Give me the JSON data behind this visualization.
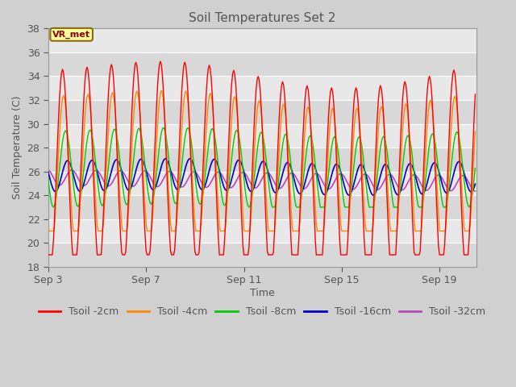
{
  "title": "Soil Temperatures Set 2",
  "xlabel": "Time",
  "ylabel": "Soil Temperature (C)",
  "ylim": [
    18,
    38
  ],
  "yticks": [
    18,
    20,
    22,
    24,
    26,
    28,
    30,
    32,
    34,
    36,
    38
  ],
  "xlim_days": [
    0,
    17.5
  ],
  "xtick_positions": [
    0,
    4,
    8,
    12,
    16
  ],
  "xtick_labels": [
    "Sep 3",
    "Sep 7",
    "Sep 11",
    "Sep 15",
    "Sep 19"
  ],
  "series": [
    {
      "label": "Tsoil -2cm",
      "color": "#ff0000"
    },
    {
      "label": "Tsoil -4cm",
      "color": "#ff8800"
    },
    {
      "label": "Tsoil -8cm",
      "color": "#00cc00"
    },
    {
      "label": "Tsoil -16cm",
      "color": "#0000cc"
    },
    {
      "label": "Tsoil -32cm",
      "color": "#bb44bb"
    }
  ],
  "annotation_text": "VR_met",
  "annotation_color": "#8b0000",
  "annotation_bg": "#ffff99",
  "background_color": "#d0d0d0",
  "plot_bg_light": "#e8e8e8",
  "plot_bg_dark": "#d8d8d8",
  "grid_color": "#ffffff",
  "title_color": "#555555",
  "axis_label_color": "#555555",
  "tick_label_color": "#555555",
  "figsize": [
    6.4,
    4.8
  ],
  "dpi": 100
}
